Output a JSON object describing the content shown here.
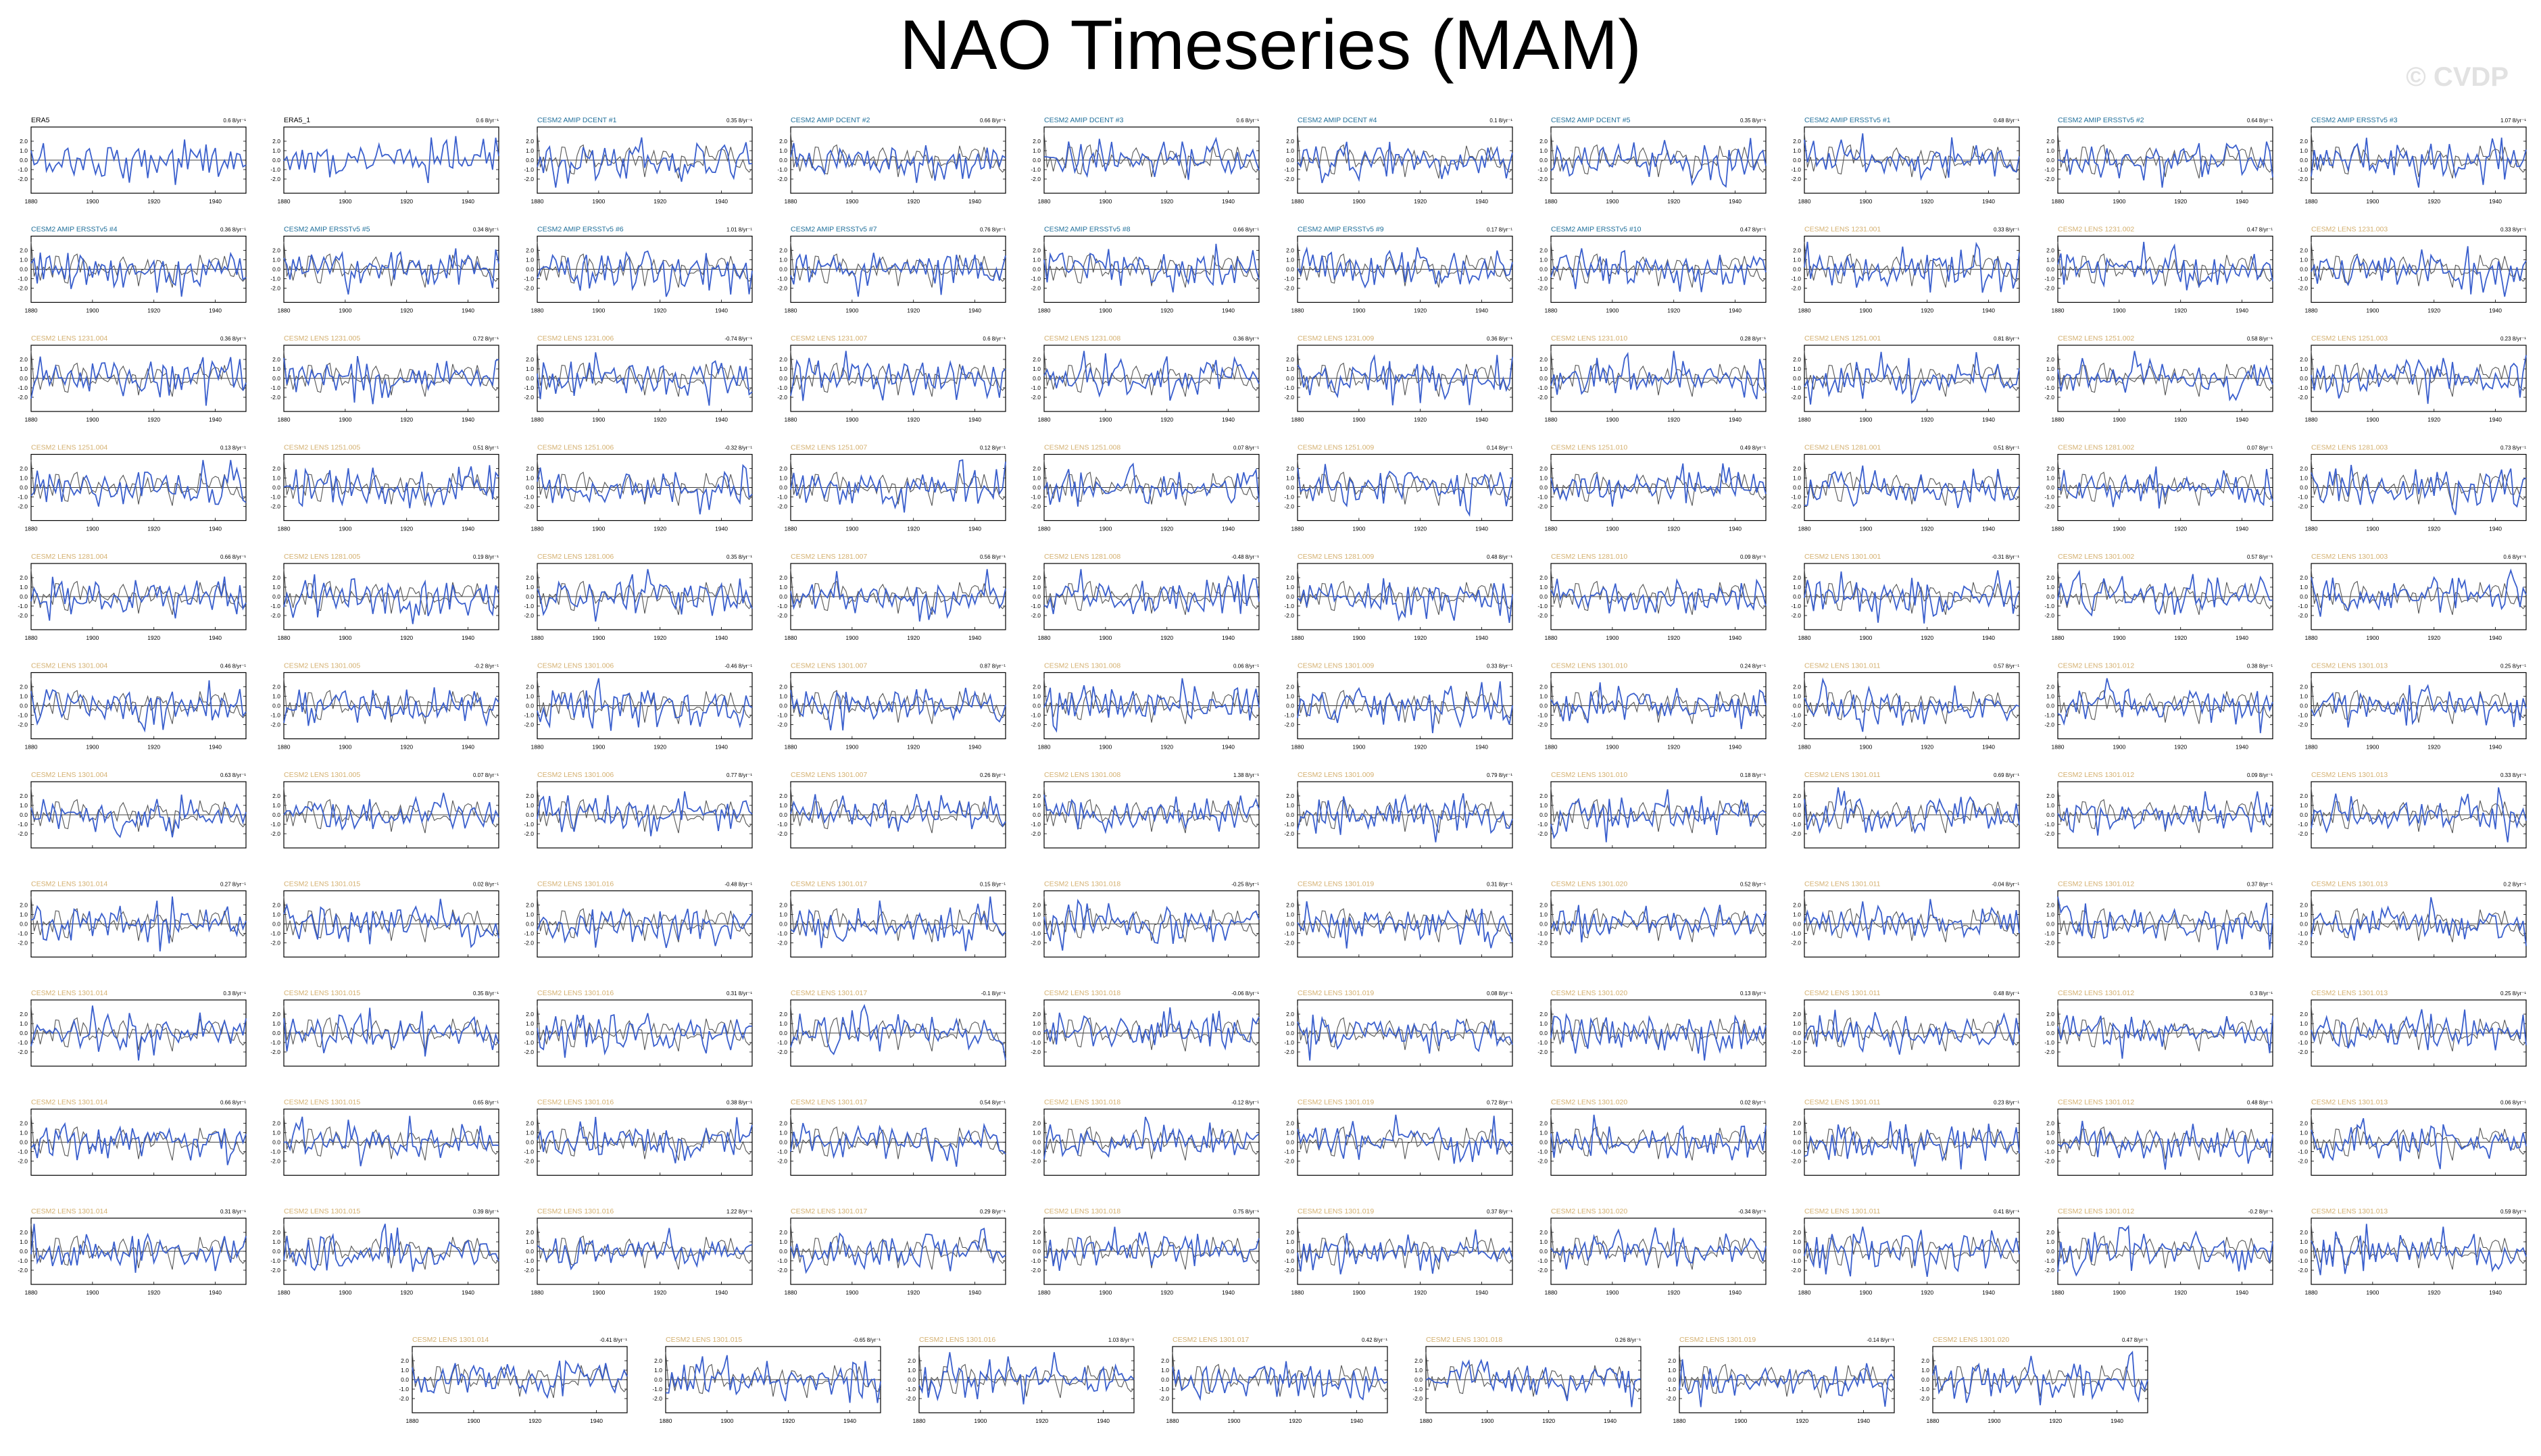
{
  "title": "NAO Timeseries (MAM)",
  "watermark": "© CVDP",
  "colors": {
    "model_line": "#3a5fcd",
    "obs_line": "#555555",
    "title_obs": "#000000",
    "title_amip": "#1f6f9a",
    "title_lens": "#d4b070"
  },
  "chart_data": {
    "type": "line",
    "x_ticks": [
      1880,
      1900,
      1920,
      1940
    ],
    "y_ticks": [
      2.0,
      1.0,
      0.0,
      -1.0,
      -2.0
    ],
    "xlim": [
      1880,
      1950
    ],
    "ylim": [
      -3.5,
      3.5
    ],
    "panels": [
      {
        "name": "ERA5",
        "trend": "0.6 8/yr⁻¹",
        "kind": "obs",
        "xlabels": true
      },
      {
        "name": "ERA5_1",
        "trend": "0.6 8/yr⁻¹",
        "kind": "obs",
        "xlabels": true
      },
      {
        "name": "CESM2 AMIP DCENT #1",
        "trend": "0.35 8/yr⁻¹",
        "kind": "amip",
        "xlabels": true
      },
      {
        "name": "CESM2 AMIP DCENT #2",
        "trend": "0.66 8/yr⁻¹",
        "kind": "amip",
        "xlabels": true
      },
      {
        "name": "CESM2 AMIP DCENT #3",
        "trend": "0.6 8/yr⁻¹",
        "kind": "amip",
        "xlabels": true
      },
      {
        "name": "CESM2 AMIP DCENT #4",
        "trend": "0.1 8/yr⁻¹",
        "kind": "amip",
        "xlabels": true
      },
      {
        "name": "CESM2 AMIP DCENT #5",
        "trend": "0.35 8/yr⁻¹",
        "kind": "amip",
        "xlabels": true
      },
      {
        "name": "CESM2 AMIP ERSSTv5 #1",
        "trend": "0.48 8/yr⁻¹",
        "kind": "amip",
        "xlabels": true
      },
      {
        "name": "CESM2 AMIP ERSSTv5 #2",
        "trend": "0.64 8/yr⁻¹",
        "kind": "amip",
        "xlabels": true
      },
      {
        "name": "CESM2 AMIP ERSSTv5 #3",
        "trend": "1.07 8/yr⁻¹",
        "kind": "amip",
        "xlabels": true
      },
      {
        "name": "CESM2 AMIP ERSSTv5 #4",
        "trend": "0.36 8/yr⁻¹",
        "kind": "amip",
        "xlabels": true
      },
      {
        "name": "CESM2 AMIP ERSSTv5 #5",
        "trend": "0.34 8/yr⁻¹",
        "kind": "amip",
        "xlabels": true
      },
      {
        "name": "CESM2 AMIP ERSSTv5 #6",
        "trend": "1.01 8/yr⁻¹",
        "kind": "amip",
        "xlabels": true
      },
      {
        "name": "CESM2 AMIP ERSSTv5 #7",
        "trend": "0.76 8/yr⁻¹",
        "kind": "amip",
        "xlabels": true
      },
      {
        "name": "CESM2 AMIP ERSSTv5 #8",
        "trend": "0.66 8/yr⁻¹",
        "kind": "amip",
        "xlabels": true
      },
      {
        "name": "CESM2 AMIP ERSSTv5 #9",
        "trend": "0.17 8/yr⁻¹",
        "kind": "amip",
        "xlabels": true
      },
      {
        "name": "CESM2 AMIP ERSSTv5 #10",
        "trend": "0.47 8/yr⁻¹",
        "kind": "amip",
        "xlabels": true
      },
      {
        "name": "CESM2 LENS 1231.001",
        "trend": "0.33 8/yr⁻¹",
        "kind": "lens",
        "xlabels": true
      },
      {
        "name": "CESM2 LENS 1231.002",
        "trend": "0.47 8/yr⁻¹",
        "kind": "lens",
        "xlabels": true
      },
      {
        "name": "CESM2 LENS 1231.003",
        "trend": "0.33 8/yr⁻¹",
        "kind": "lens",
        "xlabels": true
      },
      {
        "name": "CESM2 LENS 1231.004",
        "trend": "0.36 8/yr⁻¹",
        "kind": "lens",
        "xlabels": true
      },
      {
        "name": "CESM2 LENS 1231.005",
        "trend": "0.72 8/yr⁻¹",
        "kind": "lens",
        "xlabels": true
      },
      {
        "name": "CESM2 LENS 1231.006",
        "trend": "-0.74 8/yr⁻¹",
        "kind": "lens",
        "xlabels": true
      },
      {
        "name": "CESM2 LENS 1231.007",
        "trend": "0.6 8/yr⁻¹",
        "kind": "lens",
        "xlabels": true
      },
      {
        "name": "CESM2 LENS 1231.008",
        "trend": "0.36 8/yr⁻¹",
        "kind": "lens",
        "xlabels": true
      },
      {
        "name": "CESM2 LENS 1231.009",
        "trend": "0.36 8/yr⁻¹",
        "kind": "lens",
        "xlabels": true
      },
      {
        "name": "CESM2 LENS 1231.010",
        "trend": "0.28 8/yr⁻¹",
        "kind": "lens",
        "xlabels": true
      },
      {
        "name": "CESM2 LENS 1251.001",
        "trend": "0.81 8/yr⁻¹",
        "kind": "lens",
        "xlabels": true
      },
      {
        "name": "CESM2 LENS 1251.002",
        "trend": "0.58 8/yr⁻¹",
        "kind": "lens",
        "xlabels": true
      },
      {
        "name": "CESM2 LENS 1251.003",
        "trend": "0.23 8/yr⁻¹",
        "kind": "lens",
        "xlabels": true
      },
      {
        "name": "CESM2 LENS 1251.004",
        "trend": "0.13 8/yr⁻¹",
        "kind": "lens",
        "xlabels": true
      },
      {
        "name": "CESM2 LENS 1251.005",
        "trend": "0.51 8/yr⁻¹",
        "kind": "lens",
        "xlabels": true
      },
      {
        "name": "CESM2 LENS 1251.006",
        "trend": "-0.32 8/yr⁻¹",
        "kind": "lens",
        "xlabels": true
      },
      {
        "name": "CESM2 LENS 1251.007",
        "trend": "0.12 8/yr⁻¹",
        "kind": "lens",
        "xlabels": true
      },
      {
        "name": "CESM2 LENS 1251.008",
        "trend": "0.07 8/yr⁻¹",
        "kind": "lens",
        "xlabels": true
      },
      {
        "name": "CESM2 LENS 1251.009",
        "trend": "0.14 8/yr⁻¹",
        "kind": "lens",
        "xlabels": true
      },
      {
        "name": "CESM2 LENS 1251.010",
        "trend": "0.49 8/yr⁻¹",
        "kind": "lens",
        "xlabels": true
      },
      {
        "name": "CESM2 LENS 1281.001",
        "trend": "0.51 8/yr⁻¹",
        "kind": "lens",
        "xlabels": true
      },
      {
        "name": "CESM2 LENS 1281.002",
        "trend": "0.07 8/yr⁻¹",
        "kind": "lens",
        "xlabels": true
      },
      {
        "name": "CESM2 LENS 1281.003",
        "trend": "0.73 8/yr⁻¹",
        "kind": "lens",
        "xlabels": true
      },
      {
        "name": "CESM2 LENS 1281.004",
        "trend": "0.66 8/yr⁻¹",
        "kind": "lens",
        "xlabels": true
      },
      {
        "name": "CESM2 LENS 1281.005",
        "trend": "0.19 8/yr⁻¹",
        "kind": "lens",
        "xlabels": true
      },
      {
        "name": "CESM2 LENS 1281.006",
        "trend": "0.35 8/yr⁻¹",
        "kind": "lens",
        "xlabels": true
      },
      {
        "name": "CESM2 LENS 1281.007",
        "trend": "0.56 8/yr⁻¹",
        "kind": "lens",
        "xlabels": true
      },
      {
        "name": "CESM2 LENS 1281.008",
        "trend": "-0.48 8/yr⁻¹",
        "kind": "lens",
        "xlabels": true
      },
      {
        "name": "CESM2 LENS 1281.009",
        "trend": "0.48 8/yr⁻¹",
        "kind": "lens",
        "xlabels": true
      },
      {
        "name": "CESM2 LENS 1281.010",
        "trend": "0.09 8/yr⁻¹",
        "kind": "lens",
        "xlabels": true
      },
      {
        "name": "CESM2 LENS 1301.001",
        "trend": "-0.31 8/yr⁻¹",
        "kind": "lens",
        "xlabels": true
      },
      {
        "name": "CESM2 LENS 1301.002",
        "trend": "0.57 8/yr⁻¹",
        "kind": "lens",
        "xlabels": true
      },
      {
        "name": "CESM2 LENS 1301.003",
        "trend": "0.6 8/yr⁻¹",
        "kind": "lens",
        "xlabels": true
      },
      {
        "name": "CESM2 LENS 1301.004",
        "trend": "0.46 8/yr⁻¹",
        "kind": "lens",
        "xlabels": true
      },
      {
        "name": "CESM2 LENS 1301.005",
        "trend": "-0.2 8/yr⁻¹",
        "kind": "lens",
        "xlabels": true
      },
      {
        "name": "CESM2 LENS 1301.006",
        "trend": "-0.46 8/yr⁻¹",
        "kind": "lens",
        "xlabels": true
      },
      {
        "name": "CESM2 LENS 1301.007",
        "trend": "0.87 8/yr⁻¹",
        "kind": "lens",
        "xlabels": true
      },
      {
        "name": "CESM2 LENS 1301.008",
        "trend": "0.06 8/yr⁻¹",
        "kind": "lens",
        "xlabels": true
      },
      {
        "name": "CESM2 LENS 1301.009",
        "trend": "0.33 8/yr⁻¹",
        "kind": "lens",
        "xlabels": true
      },
      {
        "name": "CESM2 LENS 1301.010",
        "trend": "0.24 8/yr⁻¹",
        "kind": "lens",
        "xlabels": true
      },
      {
        "name": "CESM2 LENS 1301.011",
        "trend": "0.57 8/yr⁻¹",
        "kind": "lens",
        "xlabels": true
      },
      {
        "name": "CESM2 LENS 1301.012",
        "trend": "0.38 8/yr⁻¹",
        "kind": "lens",
        "xlabels": true
      },
      {
        "name": "CESM2 LENS 1301.013",
        "trend": "0.25 8/yr⁻¹",
        "kind": "lens",
        "xlabels": true
      },
      {
        "name": "CESM2 LENS 1301.004",
        "trend": "0.63 8/yr⁻¹",
        "kind": "lens",
        "xlabels": false
      },
      {
        "name": "CESM2 LENS 1301.005",
        "trend": "0.07 8/yr⁻¹",
        "kind": "lens",
        "xlabels": false
      },
      {
        "name": "CESM2 LENS 1301.006",
        "trend": "0.77 8/yr⁻¹",
        "kind": "lens",
        "xlabels": false
      },
      {
        "name": "CESM2 LENS 1301.007",
        "trend": "0.26 8/yr⁻¹",
        "kind": "lens",
        "xlabels": false
      },
      {
        "name": "CESM2 LENS 1301.008",
        "trend": "1.38 8/yr⁻¹",
        "kind": "lens",
        "xlabels": false
      },
      {
        "name": "CESM2 LENS 1301.009",
        "trend": "0.79 8/yr⁻¹",
        "kind": "lens",
        "xlabels": false
      },
      {
        "name": "CESM2 LENS 1301.010",
        "trend": "0.18 8/yr⁻¹",
        "kind": "lens",
        "xlabels": false
      },
      {
        "name": "CESM2 LENS 1301.011",
        "trend": "0.69 8/yr⁻¹",
        "kind": "lens",
        "xlabels": false
      },
      {
        "name": "CESM2 LENS 1301.012",
        "trend": "0.09 8/yr⁻¹",
        "kind": "lens",
        "xlabels": false
      },
      {
        "name": "CESM2 LENS 1301.013",
        "trend": "0.33 8/yr⁻¹",
        "kind": "lens",
        "xlabels": false
      },
      {
        "name": "CESM2 LENS 1301.014",
        "trend": "0.27 8/yr⁻¹",
        "kind": "lens",
        "xlabels": false
      },
      {
        "name": "CESM2 LENS 1301.015",
        "trend": "0.02 8/yr⁻¹",
        "kind": "lens",
        "xlabels": false
      },
      {
        "name": "CESM2 LENS 1301.016",
        "trend": "-0.48 8/yr⁻¹",
        "kind": "lens",
        "xlabels": false
      },
      {
        "name": "CESM2 LENS 1301.017",
        "trend": "0.15 8/yr⁻¹",
        "kind": "lens",
        "xlabels": false
      },
      {
        "name": "CESM2 LENS 1301.018",
        "trend": "-0.25 8/yr⁻¹",
        "kind": "lens",
        "xlabels": false
      },
      {
        "name": "CESM2 LENS 1301.019",
        "trend": "0.31 8/yr⁻¹",
        "kind": "lens",
        "xlabels": false
      },
      {
        "name": "CESM2 LENS 1301.020",
        "trend": "0.52 8/yr⁻¹",
        "kind": "lens",
        "xlabels": false
      },
      {
        "name": "CESM2 LENS 1301.011",
        "trend": "-0.04 8/yr⁻¹",
        "kind": "lens",
        "xlabels": false
      },
      {
        "name": "CESM2 LENS 1301.012",
        "trend": "0.37 8/yr⁻¹",
        "kind": "lens",
        "xlabels": false
      },
      {
        "name": "CESM2 LENS 1301.013",
        "trend": "0.2 8/yr⁻¹",
        "kind": "lens",
        "xlabels": false
      },
      {
        "name": "CESM2 LENS 1301.014",
        "trend": "0.3 8/yr⁻¹",
        "kind": "lens",
        "xlabels": false
      },
      {
        "name": "CESM2 LENS 1301.015",
        "trend": "0.35 8/yr⁻¹",
        "kind": "lens",
        "xlabels": false
      },
      {
        "name": "CESM2 LENS 1301.016",
        "trend": "0.31 8/yr⁻¹",
        "kind": "lens",
        "xlabels": false
      },
      {
        "name": "CESM2 LENS 1301.017",
        "trend": "-0.1 8/yr⁻¹",
        "kind": "lens",
        "xlabels": false
      },
      {
        "name": "CESM2 LENS 1301.018",
        "trend": "-0.06 8/yr⁻¹",
        "kind": "lens",
        "xlabels": false
      },
      {
        "name": "CESM2 LENS 1301.019",
        "trend": "0.08 8/yr⁻¹",
        "kind": "lens",
        "xlabels": false
      },
      {
        "name": "CESM2 LENS 1301.020",
        "trend": "0.13 8/yr⁻¹",
        "kind": "lens",
        "xlabels": false
      },
      {
        "name": "CESM2 LENS 1301.011",
        "trend": "0.48 8/yr⁻¹",
        "kind": "lens",
        "xlabels": false
      },
      {
        "name": "CESM2 LENS 1301.012",
        "trend": "0.3 8/yr⁻¹",
        "kind": "lens",
        "xlabels": false
      },
      {
        "name": "CESM2 LENS 1301.013",
        "trend": "0.25 8/yr⁻¹",
        "kind": "lens",
        "xlabels": false
      },
      {
        "name": "CESM2 LENS 1301.014",
        "trend": "0.66 8/yr⁻¹",
        "kind": "lens",
        "xlabels": false
      },
      {
        "name": "CESM2 LENS 1301.015",
        "trend": "0.65 8/yr⁻¹",
        "kind": "lens",
        "xlabels": false
      },
      {
        "name": "CESM2 LENS 1301.016",
        "trend": "0.38 8/yr⁻¹",
        "kind": "lens",
        "xlabels": false
      },
      {
        "name": "CESM2 LENS 1301.017",
        "trend": "0.54 8/yr⁻¹",
        "kind": "lens",
        "xlabels": false
      },
      {
        "name": "CESM2 LENS 1301.018",
        "trend": "-0.12 8/yr⁻¹",
        "kind": "lens",
        "xlabels": false
      },
      {
        "name": "CESM2 LENS 1301.019",
        "trend": "0.72 8/yr⁻¹",
        "kind": "lens",
        "xlabels": false
      },
      {
        "name": "CESM2 LENS 1301.020",
        "trend": "0.02 8/yr⁻¹",
        "kind": "lens",
        "xlabels": false
      },
      {
        "name": "CESM2 LENS 1301.011",
        "trend": "0.23 8/yr⁻¹",
        "kind": "lens",
        "xlabels": false
      },
      {
        "name": "CESM2 LENS 1301.012",
        "trend": "0.48 8/yr⁻¹",
        "kind": "lens",
        "xlabels": false
      },
      {
        "name": "CESM2 LENS 1301.013",
        "trend": "0.06 8/yr⁻¹",
        "kind": "lens",
        "xlabels": false
      },
      {
        "name": "CESM2 LENS 1301.014",
        "trend": "0.31 8/yr⁻¹",
        "kind": "lens",
        "xlabels": true
      },
      {
        "name": "CESM2 LENS 1301.015",
        "trend": "0.39 8/yr⁻¹",
        "kind": "lens",
        "xlabels": true
      },
      {
        "name": "CESM2 LENS 1301.016",
        "trend": "1.22 8/yr⁻¹",
        "kind": "lens",
        "xlabels": true
      },
      {
        "name": "CESM2 LENS 1301.017",
        "trend": "0.29 8/yr⁻¹",
        "kind": "lens",
        "xlabels": true
      },
      {
        "name": "CESM2 LENS 1301.018",
        "trend": "0.75 8/yr⁻¹",
        "kind": "lens",
        "xlabels": true
      },
      {
        "name": "CESM2 LENS 1301.019",
        "trend": "0.37 8/yr⁻¹",
        "kind": "lens",
        "xlabels": true
      },
      {
        "name": "CESM2 LENS 1301.020",
        "trend": "-0.34 8/yr⁻¹",
        "kind": "lens",
        "xlabels": true
      },
      {
        "name": "CESM2 LENS 1301.011",
        "trend": "0.41 8/yr⁻¹",
        "kind": "lens",
        "xlabels": true
      },
      {
        "name": "CESM2 LENS 1301.012",
        "trend": "-0.2 8/yr⁻¹",
        "kind": "lens",
        "xlabels": true
      },
      {
        "name": "CESM2 LENS 1301.013",
        "trend": "0.59 8/yr⁻¹",
        "kind": "lens",
        "xlabels": true
      },
      {
        "name": "CESM2 LENS 1301.014",
        "trend": "-0.41 8/yr⁻¹",
        "kind": "lens",
        "xlabels": true
      },
      {
        "name": "CESM2 LENS 1301.015",
        "trend": "-0.65 8/yr⁻¹",
        "kind": "lens",
        "xlabels": true
      },
      {
        "name": "CESM2 LENS 1301.016",
        "trend": "1.03 8/yr⁻¹",
        "kind": "lens",
        "xlabels": true
      },
      {
        "name": "CESM2 LENS 1301.017",
        "trend": "0.42 8/yr⁻¹",
        "kind": "lens",
        "xlabels": true
      },
      {
        "name": "CESM2 LENS 1301.018",
        "trend": "0.26 8/yr⁻¹",
        "kind": "lens",
        "xlabels": true
      },
      {
        "name": "CESM2 LENS 1301.019",
        "trend": "-0.14 8/yr⁻¹",
        "kind": "lens",
        "xlabels": true
      },
      {
        "name": "CESM2 LENS 1301.020",
        "trend": "0.47 8/yr⁻¹",
        "kind": "lens",
        "xlabels": true
      }
    ]
  }
}
